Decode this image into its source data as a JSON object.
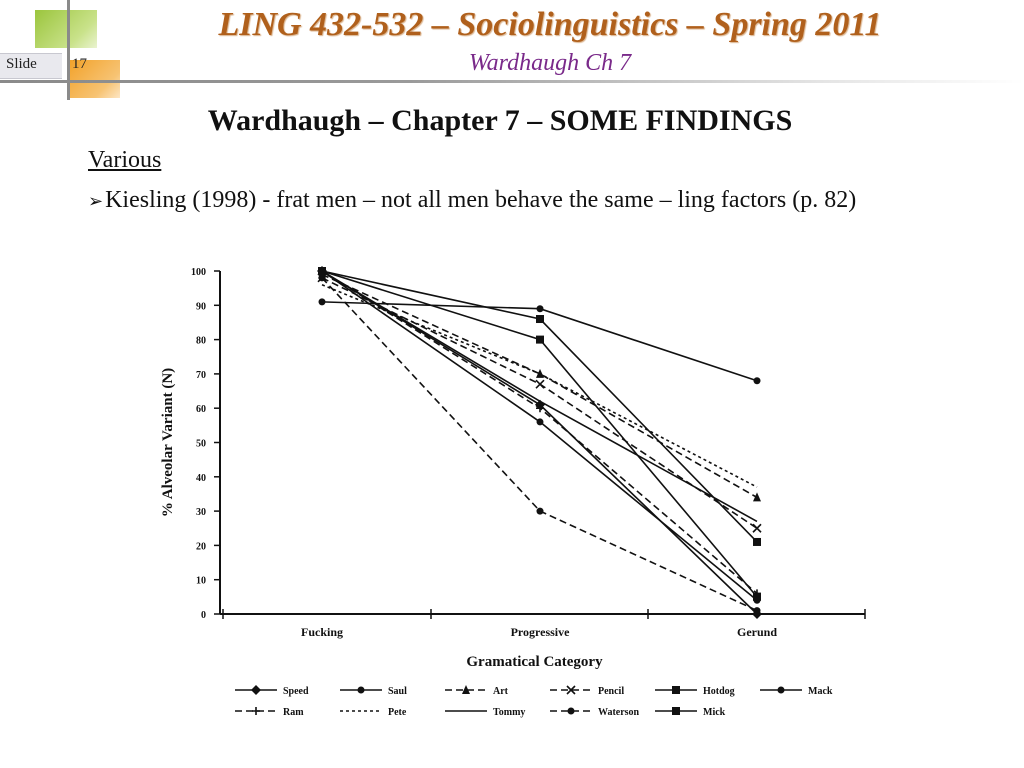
{
  "header": {
    "course_title": "LING 432-532 – Sociolinguistics – Spring 2011",
    "subtitle": "Wardhaugh Ch 7",
    "slide_label": "Slide",
    "slide_number": "17"
  },
  "content": {
    "heading": "Wardhaugh – Chapter 7 – SOME FINDINGS",
    "section": "Various",
    "bullet_symbol": "➢",
    "bullet_text": "Kiesling (1998) - frat men – not all men behave the same – ling factors (p. 82)"
  },
  "colors": {
    "title": "#b0601c",
    "subtitle": "#7a2a8a",
    "accent_green": "#9bc53d",
    "accent_orange": "#f2a22a"
  },
  "chart_data": {
    "type": "line",
    "xlabel": "Gramatical Category",
    "ylabel": "% Alveolar Variant (N)",
    "categories": [
      "Fucking",
      "Progressive",
      "Gerund"
    ],
    "ylim": [
      0,
      100
    ],
    "yticks": [
      0,
      10,
      20,
      30,
      40,
      50,
      60,
      70,
      80,
      90,
      100
    ],
    "legend_position": "bottom",
    "series": [
      {
        "name": "Speed",
        "values": [
          100,
          61,
          0
        ],
        "marker": "diamond",
        "dash": "solid"
      },
      {
        "name": "Ram",
        "values": [
          100,
          60,
          6
        ],
        "marker": "plus",
        "dash": "dashed"
      },
      {
        "name": "Saul",
        "values": [
          100,
          56,
          4
        ],
        "marker": "circle",
        "dash": "solid"
      },
      {
        "name": "Pete",
        "values": [
          96,
          70,
          37
        ],
        "marker": "none",
        "dash": "dotted"
      },
      {
        "name": "Art",
        "values": [
          99,
          70,
          34
        ],
        "marker": "triangle",
        "dash": "dashed"
      },
      {
        "name": "Tommy",
        "values": [
          100,
          62,
          27
        ],
        "marker": "none",
        "dash": "solid"
      },
      {
        "name": "Pencil",
        "values": [
          98,
          67,
          25
        ],
        "marker": "x",
        "dash": "dashed"
      },
      {
        "name": "Waterson",
        "values": [
          98,
          30,
          1
        ],
        "marker": "circle",
        "dash": "dashed"
      },
      {
        "name": "Hotdog",
        "values": [
          100,
          80,
          5
        ],
        "marker": "square",
        "dash": "solid"
      },
      {
        "name": "Mick",
        "values": [
          100,
          86,
          21
        ],
        "marker": "square",
        "dash": "solid"
      },
      {
        "name": "Mack",
        "values": [
          91,
          89,
          68
        ],
        "marker": "circle",
        "dash": "solid"
      }
    ]
  }
}
